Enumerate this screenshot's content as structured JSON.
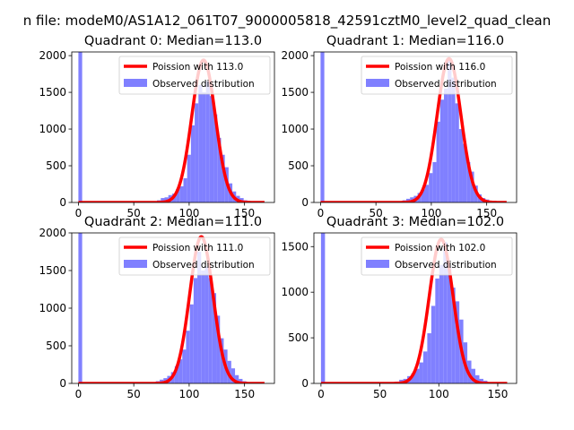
{
  "suptitle": "n file: modeM0/AS1A12_061T07_9000005818_42591cztM0_level2_quad_clean",
  "colors": {
    "line": "#ff0000",
    "bars": "#8080ff",
    "axes": "#000000"
  },
  "chart_data": [
    {
      "type": "bar",
      "title": "Quadrant 0: Median=113.0",
      "xlim": [
        -6,
        177
      ],
      "ylim": [
        0,
        2050
      ],
      "xticks": [
        0,
        50,
        100,
        150
      ],
      "yticks": [
        0,
        500,
        1000,
        1500,
        2000
      ],
      "legend_position": "top-right",
      "series": [
        {
          "name": "Poission with 113.0",
          "type": "line",
          "mu": 113.0,
          "peak": 1940,
          "x_range": [
            0,
            168
          ]
        },
        {
          "name": "Observed distribution",
          "type": "histogram",
          "bin_width": 3.4,
          "bins": [
            [
              0,
              2050
            ],
            [
              71,
              30
            ],
            [
              74.4,
              60
            ],
            [
              77.8,
              70
            ],
            [
              81.2,
              100
            ],
            [
              84.6,
              120
            ],
            [
              88,
              180
            ],
            [
              91.4,
              220
            ],
            [
              94.8,
              330
            ],
            [
              98.2,
              650
            ],
            [
              101.6,
              1050
            ],
            [
              105,
              1350
            ],
            [
              108.4,
              1600
            ],
            [
              111.8,
              1500
            ],
            [
              115.2,
              1650
            ],
            [
              118.6,
              1450
            ],
            [
              122,
              1200
            ],
            [
              125.4,
              880
            ],
            [
              128.8,
              650
            ],
            [
              132.2,
              480
            ],
            [
              135.6,
              260
            ],
            [
              139,
              150
            ],
            [
              142.4,
              90
            ],
            [
              145.8,
              60
            ],
            [
              149.2,
              30
            ],
            [
              152.6,
              20
            ]
          ]
        }
      ]
    },
    {
      "type": "bar",
      "title": "Quadrant 1: Median=116.0",
      "xlim": [
        -6,
        177
      ],
      "ylim": [
        0,
        2050
      ],
      "xticks": [
        0,
        50,
        100,
        150
      ],
      "yticks": [
        0,
        500,
        1000,
        1500,
        2000
      ],
      "legend_position": "top-right",
      "series": [
        {
          "name": "Poission with 116.0",
          "type": "line",
          "mu": 116.0,
          "peak": 1960,
          "x_range": [
            0,
            168
          ]
        },
        {
          "name": "Observed distribution",
          "type": "histogram",
          "bin_width": 3.4,
          "bins": [
            [
              0,
              2050
            ],
            [
              74,
              30
            ],
            [
              77.4,
              50
            ],
            [
              80.8,
              70
            ],
            [
              84.2,
              90
            ],
            [
              87.6,
              130
            ],
            [
              91,
              180
            ],
            [
              94.4,
              240
            ],
            [
              97.8,
              400
            ],
            [
              101.2,
              550
            ],
            [
              104.6,
              1100
            ],
            [
              108,
              1400
            ],
            [
              111.4,
              1550
            ],
            [
              114.8,
              1950
            ],
            [
              118.2,
              1700
            ],
            [
              121.6,
              1350
            ],
            [
              125,
              1000
            ],
            [
              128.4,
              800
            ],
            [
              131.8,
              550
            ],
            [
              135.2,
              420
            ],
            [
              138.6,
              230
            ],
            [
              142,
              110
            ],
            [
              145.4,
              60
            ],
            [
              148.8,
              40
            ],
            [
              152.2,
              20
            ]
          ]
        }
      ]
    },
    {
      "type": "bar",
      "title": "Quadrant 2: Median=111.0",
      "xlim": [
        -6,
        177
      ],
      "ylim": [
        0,
        2000
      ],
      "xticks": [
        0,
        50,
        100,
        150
      ],
      "yticks": [
        0,
        500,
        1000,
        1500,
        2000
      ],
      "legend_position": "top-right",
      "series": [
        {
          "name": "Poission with 111.0",
          "type": "line",
          "mu": 111.0,
          "peak": 1950,
          "x_range": [
            0,
            168
          ]
        },
        {
          "name": "Observed distribution",
          "type": "histogram",
          "bin_width": 3.4,
          "bins": [
            [
              0,
              2000
            ],
            [
              70,
              30
            ],
            [
              73.4,
              50
            ],
            [
              76.8,
              70
            ],
            [
              80.2,
              100
            ],
            [
              83.6,
              150
            ],
            [
              87,
              230
            ],
            [
              90.4,
              320
            ],
            [
              93.8,
              450
            ],
            [
              97.2,
              700
            ],
            [
              100.6,
              1050
            ],
            [
              104,
              1400
            ],
            [
              107.4,
              1750
            ],
            [
              110.8,
              1500
            ],
            [
              114.2,
              1550
            ],
            [
              117.6,
              1400
            ],
            [
              121,
              1200
            ],
            [
              124.4,
              900
            ],
            [
              127.8,
              600
            ],
            [
              131.2,
              450
            ],
            [
              134.6,
              300
            ],
            [
              138,
              200
            ],
            [
              141.4,
              110
            ],
            [
              144.8,
              60
            ],
            [
              148.2,
              30
            ]
          ]
        }
      ]
    },
    {
      "type": "bar",
      "title": "Quadrant 3: Median=102.0",
      "xlim": [
        -6,
        166
      ],
      "ylim": [
        0,
        1650
      ],
      "xticks": [
        0,
        50,
        100,
        150
      ],
      "yticks": [
        0,
        500,
        1000,
        1500
      ],
      "legend_position": "top-right",
      "series": [
        {
          "name": "Poission with 102.0",
          "type": "line",
          "mu": 102.0,
          "peak": 1580,
          "x_range": [
            0,
            158
          ]
        },
        {
          "name": "Observed distribution",
          "type": "histogram",
          "bin_width": 3.4,
          "bins": [
            [
              0,
              1650
            ],
            [
              63,
              20
            ],
            [
              66.4,
              40
            ],
            [
              69.8,
              50
            ],
            [
              73.2,
              80
            ],
            [
              76.6,
              110
            ],
            [
              80,
              160
            ],
            [
              83.4,
              230
            ],
            [
              86.8,
              350
            ],
            [
              90.2,
              550
            ],
            [
              93.6,
              850
            ],
            [
              97,
              1150
            ],
            [
              100.4,
              1300
            ],
            [
              103.8,
              1550
            ],
            [
              107.2,
              1280
            ],
            [
              110.6,
              1050
            ],
            [
              114,
              900
            ],
            [
              117.4,
              700
            ],
            [
              120.8,
              450
            ],
            [
              124.2,
              250
            ],
            [
              127.6,
              160
            ],
            [
              131,
              90
            ],
            [
              134.4,
              50
            ],
            [
              137.8,
              30
            ]
          ]
        }
      ]
    }
  ]
}
